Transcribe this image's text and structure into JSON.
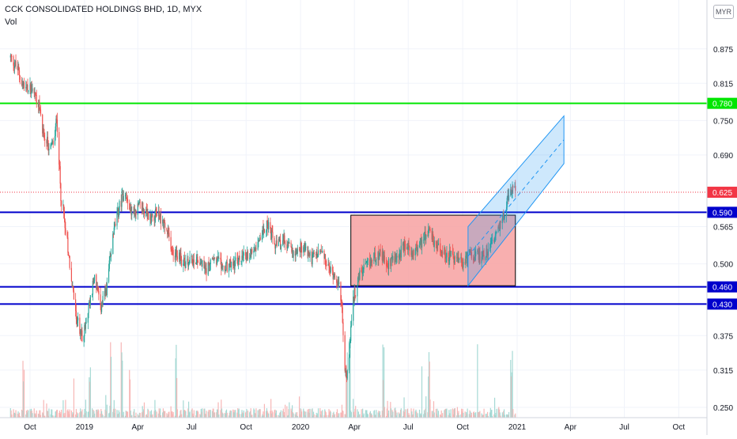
{
  "header": {
    "title": "CCK CONSOLIDATED HOLDINGS BHD, 1D, MYX",
    "volume_label": "Vol"
  },
  "currency": "MYR",
  "colors": {
    "up": "#26a69a",
    "down": "#ef5350",
    "resistance_green": "#00e600",
    "support_blue": "#0000cc",
    "channel_blue": "#2196f3",
    "range_box": "#f7a1a1",
    "price_marker": "#f23645"
  },
  "chart_data": {
    "type": "candlestick",
    "title": "CCK CONSOLIDATED HOLDINGS BHD, 1D, MYX",
    "y_axis": {
      "scale": "linear",
      "range": [
        0.232,
        0.905
      ],
      "tick_labels": [
        "0.875",
        "0.815",
        "0.750",
        "0.690",
        "0.565",
        "0.500",
        "0.375",
        "0.315",
        "0.250"
      ]
    },
    "x_axis": {
      "tick_labels": [
        "Oct",
        "2019",
        "Apr",
        "Jul",
        "Oct",
        "2020",
        "Apr",
        "Jul",
        "Oct",
        "2021",
        "Apr",
        "Jul",
        "Oct"
      ]
    },
    "last_price": 0.625,
    "horizontal_levels": [
      {
        "value": 0.78,
        "label": "0.780",
        "color": "#00e600"
      },
      {
        "value": 0.59,
        "label": "0.590",
        "color": "#0000cc"
      },
      {
        "value": 0.46,
        "label": "0.460",
        "color": "#0000cc"
      },
      {
        "value": 0.43,
        "label": "0.430",
        "color": "#0000cc"
      }
    ],
    "range_box": {
      "start": "2020-03-26",
      "end": "2020-12-29",
      "top": 0.585,
      "bottom": 0.462
    },
    "channel": {
      "start": "2020-10-10",
      "end": "2021-03-21",
      "lower_start": 0.462,
      "lower_end": 0.675,
      "upper_start": 0.565,
      "upper_end": 0.758
    },
    "price_anchors": [
      [
        "2018-08-29",
        0.86
      ],
      [
        "2018-09-10",
        0.84
      ],
      [
        "2018-09-22",
        0.8
      ],
      [
        "2018-10-05",
        0.81
      ],
      [
        "2018-10-15",
        0.78
      ],
      [
        "2018-10-25",
        0.72
      ],
      [
        "2018-11-05",
        0.7
      ],
      [
        "2018-11-12",
        0.72
      ],
      [
        "2018-11-15",
        0.76
      ],
      [
        "2018-11-22",
        0.62
      ],
      [
        "2018-12-02",
        0.55
      ],
      [
        "2018-12-10",
        0.47
      ],
      [
        "2018-12-18",
        0.41
      ],
      [
        "2018-12-28",
        0.37
      ],
      [
        "2019-01-08",
        0.42
      ],
      [
        "2019-01-18",
        0.48
      ],
      [
        "2019-01-28",
        0.42
      ],
      [
        "2019-02-08",
        0.46
      ],
      [
        "2019-02-18",
        0.55
      ],
      [
        "2019-03-01",
        0.6
      ],
      [
        "2019-03-10",
        0.63
      ],
      [
        "2019-03-22",
        0.59
      ],
      [
        "2019-04-05",
        0.6
      ],
      [
        "2019-04-20",
        0.58
      ],
      [
        "2019-05-05",
        0.59
      ],
      [
        "2019-05-15",
        0.57
      ],
      [
        "2019-06-01",
        0.52
      ],
      [
        "2019-06-20",
        0.5
      ],
      [
        "2019-07-10",
        0.51
      ],
      [
        "2019-07-25",
        0.49
      ],
      [
        "2019-08-10",
        0.51
      ],
      [
        "2019-08-25",
        0.49
      ],
      [
        "2019-09-10",
        0.5
      ],
      [
        "2019-09-25",
        0.51
      ],
      [
        "2019-10-10",
        0.52
      ],
      [
        "2019-10-25",
        0.55
      ],
      [
        "2019-11-05",
        0.57
      ],
      [
        "2019-11-20",
        0.53
      ],
      [
        "2019-12-05",
        0.54
      ],
      [
        "2019-12-20",
        0.52
      ],
      [
        "2020-01-05",
        0.53
      ],
      [
        "2020-01-20",
        0.51
      ],
      [
        "2020-02-05",
        0.52
      ],
      [
        "2020-02-18",
        0.49
      ],
      [
        "2020-03-01",
        0.48
      ],
      [
        "2020-03-10",
        0.44
      ],
      [
        "2020-03-15",
        0.32
      ],
      [
        "2020-03-19",
        0.3
      ],
      [
        "2020-03-24",
        0.36
      ],
      [
        "2020-03-30",
        0.44
      ],
      [
        "2020-04-10",
        0.48
      ],
      [
        "2020-04-25",
        0.5
      ],
      [
        "2020-05-10",
        0.52
      ],
      [
        "2020-05-25",
        0.5
      ],
      [
        "2020-06-10",
        0.51
      ],
      [
        "2020-06-25",
        0.53
      ],
      [
        "2020-07-10",
        0.52
      ],
      [
        "2020-07-25",
        0.54
      ],
      [
        "2020-08-05",
        0.56
      ],
      [
        "2020-08-15",
        0.53
      ],
      [
        "2020-08-30",
        0.52
      ],
      [
        "2020-09-15",
        0.51
      ],
      [
        "2020-09-30",
        0.5
      ],
      [
        "2020-10-15",
        0.52
      ],
      [
        "2020-10-30",
        0.51
      ],
      [
        "2020-11-10",
        0.52
      ],
      [
        "2020-11-22",
        0.54
      ],
      [
        "2020-12-05",
        0.57
      ],
      [
        "2020-12-15",
        0.61
      ],
      [
        "2020-12-22",
        0.63
      ],
      [
        "2020-12-30",
        0.625
      ]
    ],
    "volume_spike_dates": [
      "2018-09-20",
      "2018-12-15",
      "2019-01-10",
      "2019-02-15",
      "2019-03-05",
      "2019-03-18",
      "2019-06-05",
      "2020-03-19",
      "2020-03-24",
      "2020-05-20",
      "2020-07-25",
      "2020-08-05",
      "2020-10-25",
      "2020-12-20",
      "2020-12-23"
    ]
  }
}
